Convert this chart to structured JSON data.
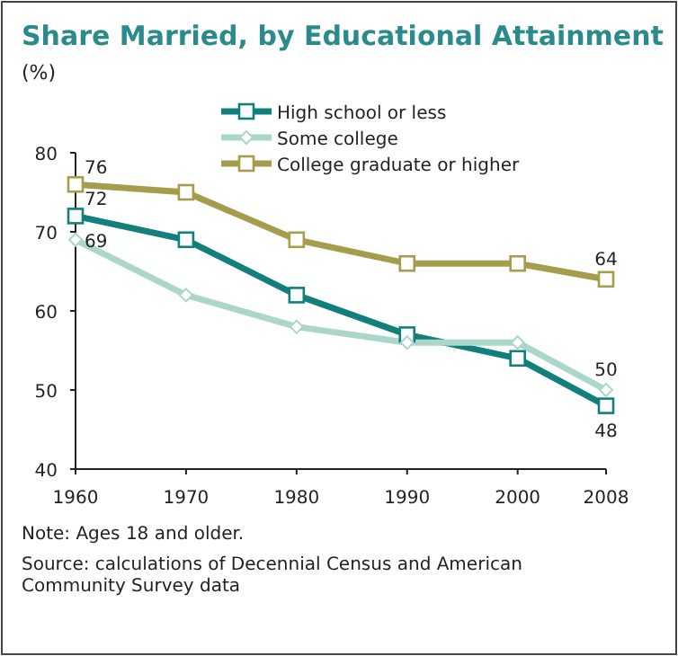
{
  "chart_data": {
    "type": "line",
    "title": "Share Married, by Educational Attainment",
    "ylabel": "(%)",
    "x": [
      1960,
      1970,
      1980,
      1990,
      2000,
      2008
    ],
    "xlim": [
      1960,
      2008
    ],
    "xticks": [
      1960,
      1970,
      1980,
      1990,
      2000,
      2008
    ],
    "ylim": [
      40,
      80
    ],
    "yticks": [
      40,
      50,
      60,
      70,
      80
    ],
    "grid": false,
    "legend": "top",
    "series": [
      {
        "name": "High school or less",
        "color": "#117f7c",
        "marker": "square",
        "values": [
          72,
          69,
          62,
          57,
          54,
          48
        ],
        "value_labels": [
          "72",
          null,
          null,
          null,
          null,
          "48"
        ]
      },
      {
        "name": "Some college",
        "color": "#abd6ca",
        "marker": "diamond",
        "values": [
          69,
          62,
          58,
          56,
          56,
          50
        ],
        "value_labels": [
          "69",
          null,
          null,
          null,
          null,
          "50"
        ]
      },
      {
        "name": "College graduate or higher",
        "color": "#a59c4c",
        "marker": "square",
        "values": [
          76,
          75,
          69,
          66,
          66,
          64
        ],
        "value_labels": [
          "76",
          null,
          null,
          null,
          null,
          "64"
        ]
      }
    ],
    "annotations": [
      "Note: Ages 18 and older.",
      "Source: calculations of Decennial Census and American Community Survey data"
    ]
  }
}
